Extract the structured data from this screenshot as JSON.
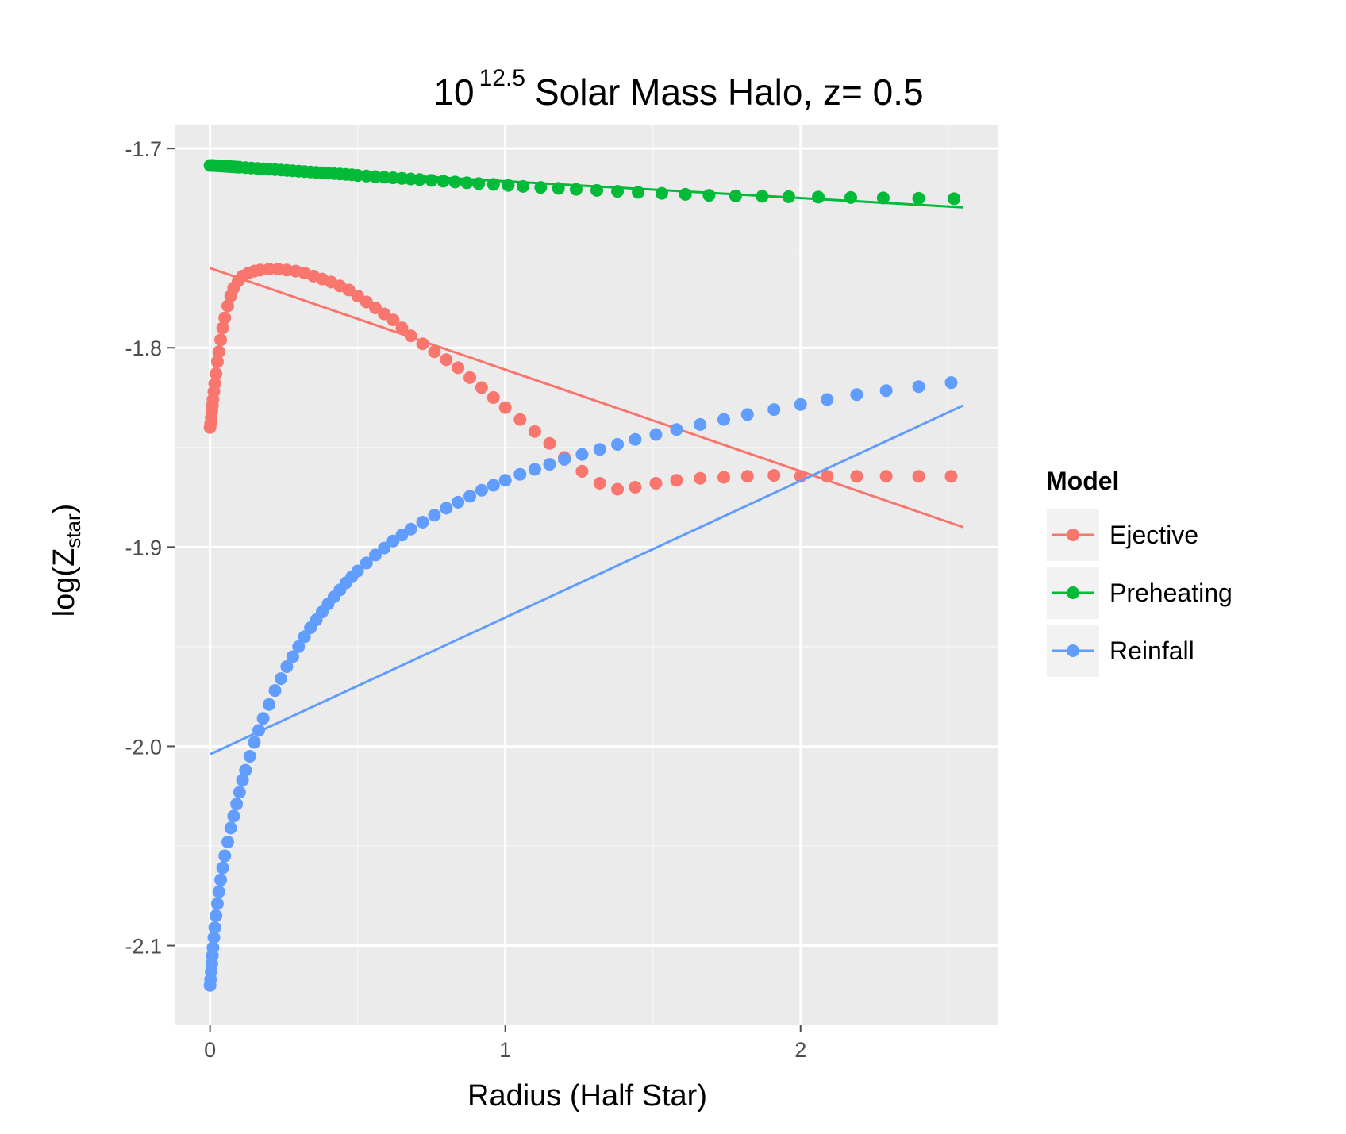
{
  "chart_data": {
    "type": "scatter",
    "title": {
      "prefix": "10",
      "superscript": "12.5",
      "suffix": "Solar Mass Halo, z= 0.5"
    },
    "xlabel": "Radius (Half Star)",
    "ylabel": {
      "main": "log(Z",
      "subscript": "star",
      "close": ")"
    },
    "xlim": [
      -0.12,
      2.67
    ],
    "ylim": [
      -2.14,
      -1.688
    ],
    "x_ticks": [
      0,
      1,
      2
    ],
    "x_tick_labels": [
      "0",
      "1",
      "2"
    ],
    "y_ticks": [
      -1.7,
      -1.8,
      -1.9,
      -2.0,
      -2.1
    ],
    "y_tick_labels": [
      "-1.7",
      "-1.8",
      "-1.9",
      "-2.0",
      "-2.1"
    ],
    "grid": true,
    "legend": {
      "title": "Model",
      "placement": "right",
      "entries": [
        "Ejective",
        "Preheating",
        "Reinfall"
      ]
    },
    "series": [
      {
        "name": "Ejective",
        "color": "#f8766d",
        "fit": {
          "x": [
            0.0,
            2.55
          ],
          "y": [
            -1.76,
            -1.89
          ]
        },
        "points": {
          "x": [
            0.0,
            0.002,
            0.004,
            0.006,
            0.008,
            0.01,
            0.013,
            0.016,
            0.02,
            0.025,
            0.03,
            0.036,
            0.043,
            0.05,
            0.06,
            0.07,
            0.08,
            0.095,
            0.11,
            0.13,
            0.15,
            0.17,
            0.2,
            0.23,
            0.26,
            0.29,
            0.32,
            0.35,
            0.38,
            0.41,
            0.44,
            0.47,
            0.5,
            0.53,
            0.56,
            0.59,
            0.62,
            0.65,
            0.68,
            0.72,
            0.76,
            0.8,
            0.84,
            0.88,
            0.92,
            0.96,
            1.0,
            1.05,
            1.1,
            1.15,
            1.2,
            1.26,
            1.32,
            1.38,
            1.44,
            1.51,
            1.58,
            1.66,
            1.74,
            1.82,
            1.91,
            2.0,
            2.09,
            2.19,
            2.29,
            2.4,
            2.51
          ],
          "y": [
            -1.84,
            -1.838,
            -1.835,
            -1.832,
            -1.829,
            -1.826,
            -1.822,
            -1.818,
            -1.813,
            -1.807,
            -1.802,
            -1.796,
            -1.79,
            -1.785,
            -1.779,
            -1.774,
            -1.77,
            -1.7665,
            -1.764,
            -1.7625,
            -1.7615,
            -1.761,
            -1.7605,
            -1.7605,
            -1.761,
            -1.7615,
            -1.7625,
            -1.764,
            -1.7655,
            -1.767,
            -1.769,
            -1.771,
            -1.774,
            -1.777,
            -1.78,
            -1.783,
            -1.786,
            -1.79,
            -1.794,
            -1.798,
            -1.802,
            -1.806,
            -1.81,
            -1.815,
            -1.82,
            -1.825,
            -1.83,
            -1.836,
            -1.842,
            -1.848,
            -1.855,
            -1.862,
            -1.868,
            -1.871,
            -1.87,
            -1.868,
            -1.8665,
            -1.8655,
            -1.865,
            -1.8645,
            -1.864,
            -1.8645,
            -1.8645,
            -1.8645,
            -1.8645,
            -1.8645,
            -1.8645
          ]
        }
      },
      {
        "name": "Preheating",
        "color": "#00ba38",
        "fit": {
          "x": [
            0.0,
            2.55
          ],
          "y": [
            -1.708,
            -1.7295
          ]
        },
        "points": {
          "x": [
            0.0,
            0.005,
            0.01,
            0.02,
            0.03,
            0.04,
            0.05,
            0.06,
            0.07,
            0.08,
            0.09,
            0.1,
            0.12,
            0.14,
            0.16,
            0.18,
            0.2,
            0.22,
            0.24,
            0.26,
            0.28,
            0.3,
            0.32,
            0.34,
            0.36,
            0.38,
            0.4,
            0.42,
            0.44,
            0.46,
            0.48,
            0.5,
            0.53,
            0.56,
            0.59,
            0.62,
            0.65,
            0.68,
            0.71,
            0.75,
            0.79,
            0.83,
            0.87,
            0.91,
            0.96,
            1.01,
            1.06,
            1.12,
            1.18,
            1.24,
            1.31,
            1.38,
            1.45,
            1.53,
            1.61,
            1.69,
            1.78,
            1.87,
            1.96,
            2.06,
            2.17,
            2.28,
            2.4,
            2.52
          ],
          "y": [
            -1.7085,
            -1.7085,
            -1.7085,
            -1.7086,
            -1.7087,
            -1.7088,
            -1.7089,
            -1.709,
            -1.7091,
            -1.7092,
            -1.7093,
            -1.7094,
            -1.7096,
            -1.7098,
            -1.71,
            -1.7102,
            -1.7104,
            -1.7106,
            -1.7108,
            -1.711,
            -1.7112,
            -1.7114,
            -1.7116,
            -1.7118,
            -1.712,
            -1.7122,
            -1.7124,
            -1.7126,
            -1.7128,
            -1.713,
            -1.7132,
            -1.7135,
            -1.7138,
            -1.7141,
            -1.7144,
            -1.7147,
            -1.715,
            -1.7153,
            -1.7156,
            -1.716,
            -1.7164,
            -1.7168,
            -1.7172,
            -1.7176,
            -1.718,
            -1.7185,
            -1.719,
            -1.7195,
            -1.72,
            -1.7205,
            -1.721,
            -1.7215,
            -1.722,
            -1.7225,
            -1.723,
            -1.7235,
            -1.7238,
            -1.724,
            -1.7242,
            -1.7244,
            -1.7246,
            -1.7248,
            -1.725,
            -1.7252
          ]
        }
      },
      {
        "name": "Reinfall",
        "color": "#619cff",
        "fit": {
          "x": [
            0.0,
            2.55
          ],
          "y": [
            -2.004,
            -1.829
          ]
        },
        "points": {
          "x": [
            0.0,
            0.002,
            0.004,
            0.006,
            0.008,
            0.01,
            0.013,
            0.016,
            0.02,
            0.025,
            0.03,
            0.036,
            0.043,
            0.05,
            0.06,
            0.07,
            0.08,
            0.09,
            0.1,
            0.11,
            0.12,
            0.135,
            0.15,
            0.165,
            0.18,
            0.2,
            0.22,
            0.24,
            0.26,
            0.28,
            0.3,
            0.32,
            0.34,
            0.36,
            0.38,
            0.4,
            0.42,
            0.44,
            0.46,
            0.48,
            0.5,
            0.53,
            0.56,
            0.59,
            0.62,
            0.65,
            0.68,
            0.72,
            0.76,
            0.8,
            0.84,
            0.88,
            0.92,
            0.96,
            1.0,
            1.05,
            1.1,
            1.15,
            1.2,
            1.26,
            1.32,
            1.38,
            1.44,
            1.51,
            1.58,
            1.66,
            1.74,
            1.82,
            1.91,
            2.0,
            2.09,
            2.19,
            2.29,
            2.4,
            2.51
          ],
          "y": [
            -2.12,
            -2.117,
            -2.113,
            -2.109,
            -2.105,
            -2.101,
            -2.096,
            -2.091,
            -2.085,
            -2.079,
            -2.073,
            -2.067,
            -2.061,
            -2.055,
            -2.048,
            -2.041,
            -2.035,
            -2.029,
            -2.023,
            -2.017,
            -2.012,
            -2.005,
            -1.998,
            -1.992,
            -1.986,
            -1.979,
            -1.972,
            -1.966,
            -1.96,
            -1.955,
            -1.95,
            -1.945,
            -1.9405,
            -1.9365,
            -1.9325,
            -1.9285,
            -1.925,
            -1.9215,
            -1.918,
            -1.915,
            -1.912,
            -1.908,
            -1.904,
            -1.9005,
            -1.897,
            -1.894,
            -1.891,
            -1.8875,
            -1.884,
            -1.8805,
            -1.8775,
            -1.8745,
            -1.8715,
            -1.869,
            -1.8665,
            -1.8635,
            -1.861,
            -1.8585,
            -1.856,
            -1.8535,
            -1.851,
            -1.8485,
            -1.846,
            -1.8435,
            -1.841,
            -1.8385,
            -1.836,
            -1.8335,
            -1.831,
            -1.8285,
            -1.826,
            -1.8235,
            -1.8215,
            -1.8195,
            -1.8175
          ]
        }
      }
    ]
  }
}
